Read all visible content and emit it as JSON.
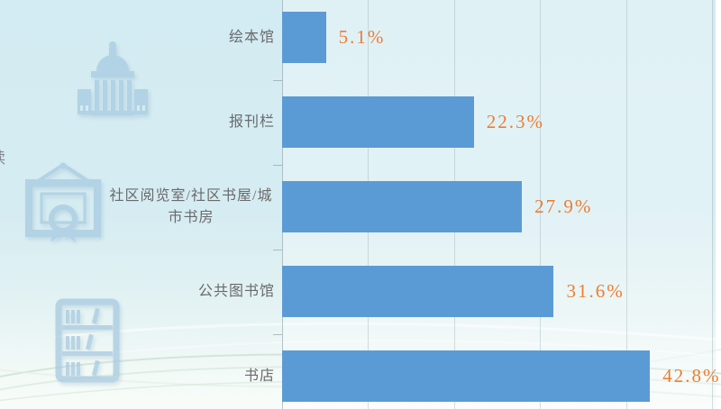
{
  "chart_data": {
    "type": "bar",
    "orientation": "horizontal",
    "title": "",
    "categories": [
      "绘本馆",
      "报刊栏",
      "社区阅览室/社区书屋/城市书房",
      "公共图书馆",
      "书店"
    ],
    "values": [
      5.1,
      22.3,
      27.9,
      31.6,
      42.8
    ],
    "value_labels": [
      "5.1%",
      "22.3%",
      "27.9%",
      "31.6%",
      "42.8%"
    ],
    "xlim": [
      0,
      50
    ],
    "grid": true,
    "gridline_interval_percent": 10,
    "legend_position": "none",
    "bar_color": "#5b9bd5",
    "value_label_color": "#ed7d31",
    "category_label_color": "#6a6a6a",
    "gridline_color": "rgba(142,162,170,0.35)"
  },
  "background": {
    "top_color": "#d3ebf2",
    "bottom_color": "#f8fcf9",
    "watermark_color": "#a9cbe2",
    "watermark_icons": [
      "capitol-building-icon",
      "certificate-frame-icon",
      "bookshelf-icon"
    ]
  }
}
